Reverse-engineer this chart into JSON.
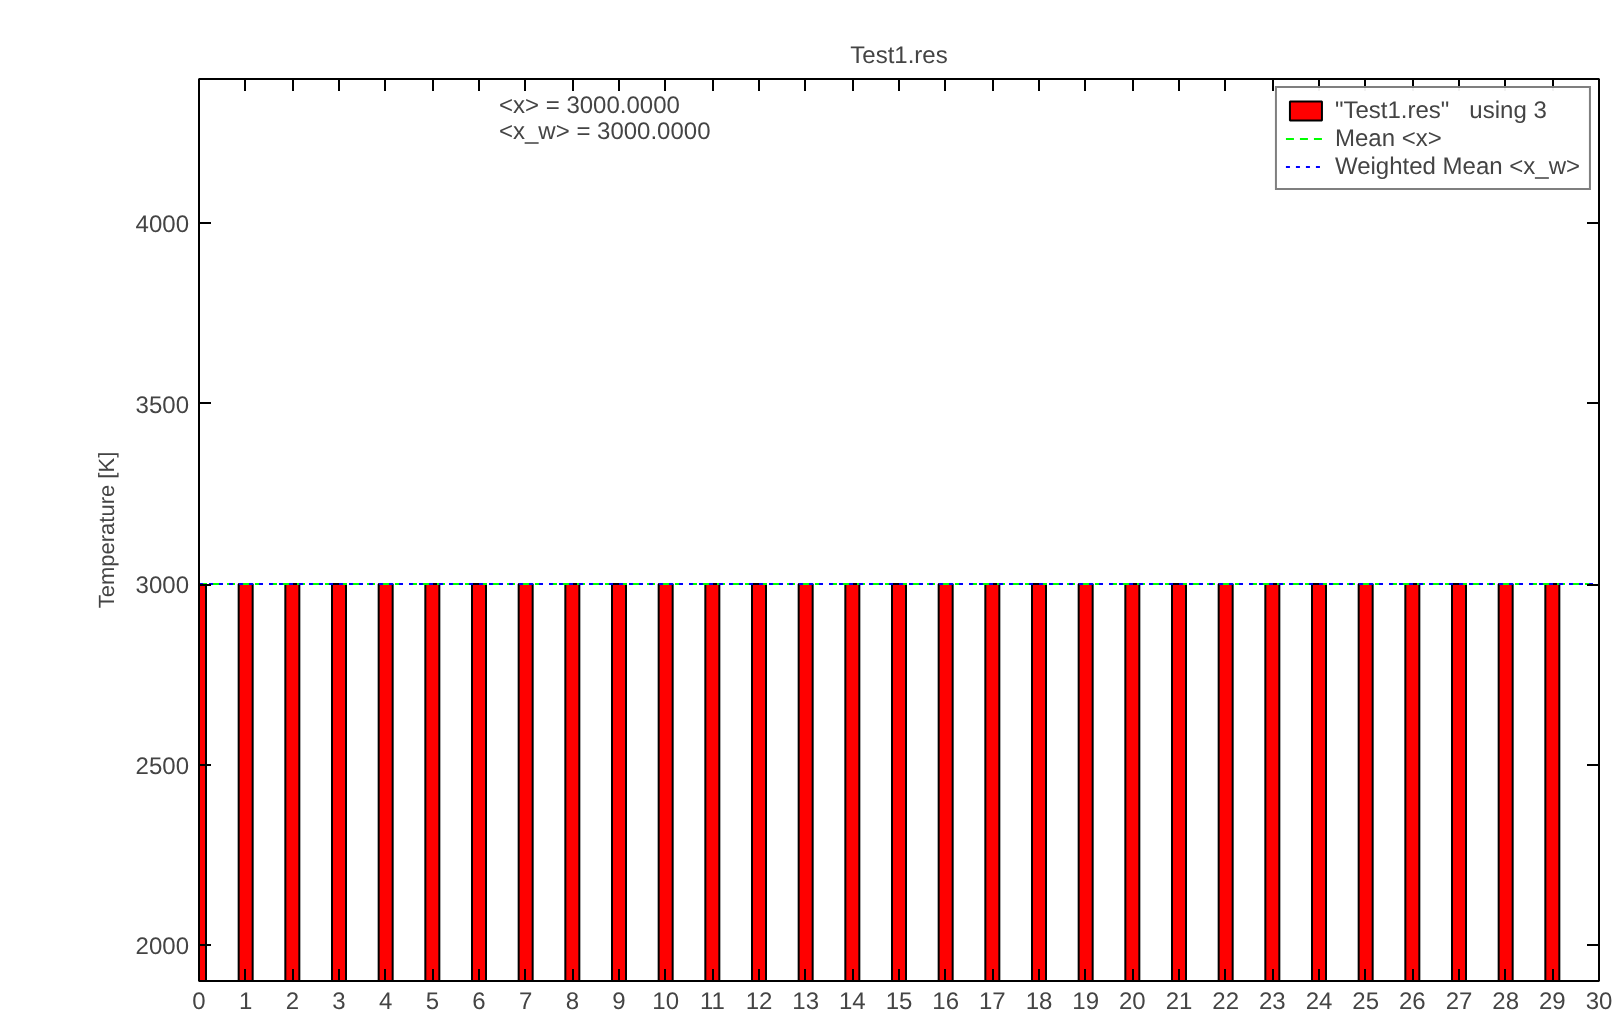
{
  "chart_data": {
    "type": "bar",
    "title": "Test1.res",
    "ylabel": "Temperature [K]",
    "x": [
      0,
      1,
      2,
      3,
      4,
      5,
      6,
      7,
      8,
      9,
      10,
      11,
      12,
      13,
      14,
      15,
      16,
      17,
      18,
      19,
      20,
      21,
      22,
      23,
      24,
      25,
      26,
      27,
      28,
      29
    ],
    "series": [
      {
        "name": "\"Test1.res\"   using 3",
        "color": "#ff0000",
        "values": [
          3000,
          3000,
          3000,
          3000,
          3000,
          3000,
          3000,
          3000,
          3000,
          3000,
          3000,
          3000,
          3000,
          3000,
          3000,
          3000,
          3000,
          3000,
          3000,
          3000,
          3000,
          3000,
          3000,
          3000,
          3000,
          3000,
          3000,
          3000,
          3000,
          3000
        ]
      }
    ],
    "ref_lines": [
      {
        "axis": "y",
        "value": 3000,
        "label": "Mean <x>",
        "color": "#00ff00",
        "line_style": "dashed"
      },
      {
        "axis": "y",
        "value": 3000,
        "label": "Weighted Mean <x_w>",
        "color": "#0000ff",
        "line_style": "dotted"
      }
    ],
    "xlim": [
      0,
      30
    ],
    "xticks": [
      0,
      1,
      2,
      3,
      4,
      5,
      6,
      7,
      8,
      9,
      10,
      11,
      12,
      13,
      14,
      15,
      16,
      17,
      18,
      19,
      20,
      21,
      22,
      23,
      24,
      25,
      26,
      27,
      28,
      29,
      30
    ],
    "ylim": [
      1900,
      4400
    ],
    "yticks": [
      2000,
      2500,
      3000,
      3500,
      4000
    ],
    "grid": false,
    "legend": "top right",
    "annotations": [
      "<x>  = 3000.0000",
      "<x_w> = 3000.0000"
    ]
  }
}
